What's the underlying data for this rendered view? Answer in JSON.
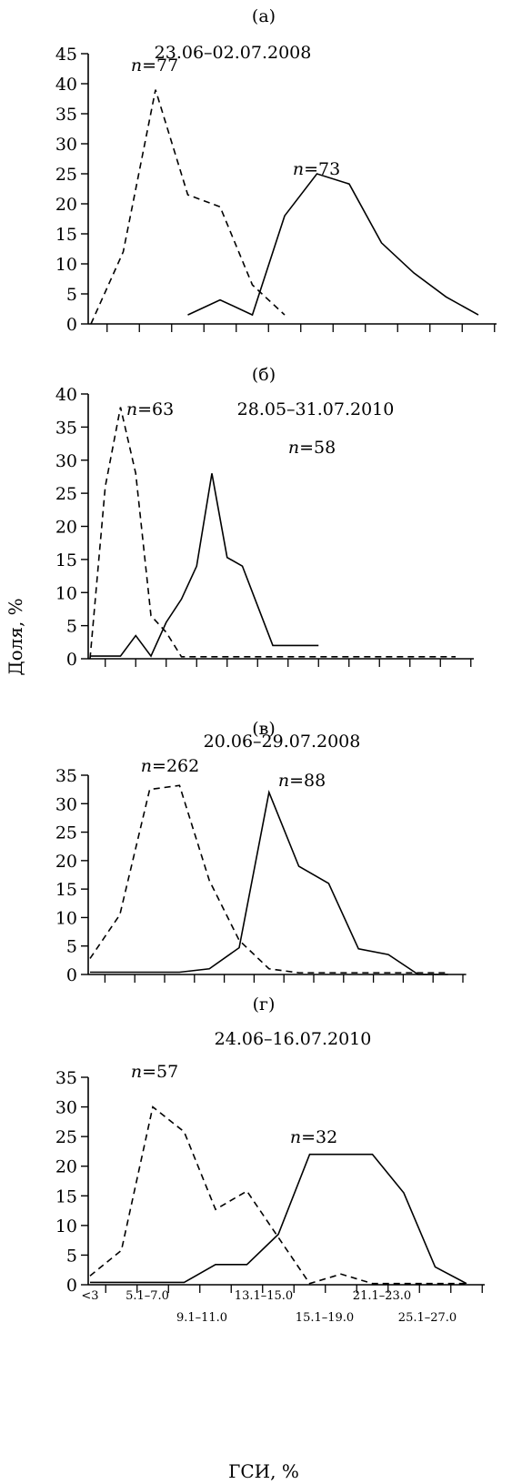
{
  "figure": {
    "ylabel": "Доля, %",
    "xlabel": "ГСИ, %",
    "x_tick_labels": [
      "<3",
      "5.1–7.0",
      "9.1–11.0",
      "13.1–15.0",
      "15.1–19.0",
      "21.1–23.0",
      "25.1–27.0"
    ]
  },
  "chart_data": [
    {
      "type": "line",
      "panel_label": "(а)",
      "title": "23.06–02.07.2008",
      "ylim": [
        0,
        45
      ],
      "yticks": [
        0,
        5,
        10,
        15,
        20,
        25,
        30,
        35,
        40,
        45
      ],
      "x_categories": 13,
      "series": [
        {
          "label": "n=77",
          "style": "dashed",
          "x": [
            0,
            1,
            2,
            3,
            4,
            5,
            6
          ],
          "values": [
            0,
            12,
            39,
            21.5,
            19.5,
            6.5,
            1.5
          ]
        },
        {
          "label": "n=73",
          "style": "solid",
          "x": [
            3,
            4,
            5,
            6,
            7,
            8,
            9,
            10,
            11,
            12
          ],
          "values": [
            1.5,
            4,
            1.5,
            18,
            25,
            23.3,
            13.5,
            8.5,
            4.5,
            1.5
          ]
        }
      ]
    },
    {
      "type": "line",
      "panel_label": "(б)",
      "title": "28.05–31.07.2010",
      "ylim": [
        0,
        40
      ],
      "yticks": [
        0,
        5,
        10,
        15,
        20,
        25,
        30,
        35,
        40
      ],
      "x_categories": 13,
      "series": [
        {
          "label": "n=63",
          "style": "dashed",
          "x": [
            0,
            0.5,
            1,
            1.5,
            2,
            2.5,
            3,
            3.5,
            4,
            4.5,
            5,
            6,
            7,
            8,
            9,
            10,
            11,
            12
          ],
          "values": [
            0,
            26,
            38,
            28,
            6.5,
            4,
            0.3,
            0.3,
            0.3,
            0.3,
            0.3,
            0.3,
            0.3,
            0.3,
            0.3,
            0.3,
            0.3,
            0.3
          ]
        },
        {
          "label": "n=58",
          "style": "solid",
          "x": [
            0,
            1,
            1.5,
            2,
            2.5,
            3,
            3.5,
            4,
            4.5,
            5,
            5.5,
            6,
            6.5,
            7,
            7.5
          ],
          "values": [
            0.4,
            0.4,
            3.5,
            0.4,
            5.5,
            9,
            14,
            28,
            15.3,
            14,
            8,
            2,
            2,
            2,
            2
          ]
        }
      ]
    },
    {
      "type": "line",
      "panel_label": "(в)",
      "title": "20.06–29.07.2008",
      "ylim": [
        0,
        35
      ],
      "yticks": [
        0,
        5,
        10,
        15,
        20,
        25,
        30,
        35
      ],
      "x_categories": 13,
      "series": [
        {
          "label": "n=262",
          "style": "dashed",
          "x": [
            0,
            1,
            2,
            3,
            4,
            5,
            6,
            7,
            8,
            9,
            10,
            11,
            12
          ],
          "values": [
            2.8,
            10.5,
            32.5,
            33.2,
            16.5,
            6,
            1,
            0.3,
            0.3,
            0.3,
            0.3,
            0.3,
            0.3
          ]
        },
        {
          "label": "n=88",
          "style": "solid",
          "x": [
            0,
            1,
            2,
            3,
            4,
            5,
            6,
            7,
            8,
            9,
            10,
            11,
            12
          ],
          "values": [
            0.4,
            0.4,
            0.4,
            0.4,
            1,
            4.7,
            32,
            19,
            16,
            4.5,
            3.5,
            0,
            0
          ]
        }
      ]
    },
    {
      "type": "line",
      "panel_label": "(г)",
      "title": "24.06–16.07.2010",
      "ylim": [
        0,
        35
      ],
      "yticks": [
        0,
        5,
        10,
        15,
        20,
        25,
        30,
        35
      ],
      "x_categories": 13,
      "series": [
        {
          "label": "n=57",
          "style": "dashed",
          "x": [
            0,
            1,
            2,
            3,
            4,
            5,
            6,
            7,
            8,
            9,
            10,
            11,
            12
          ],
          "values": [
            1.5,
            5.8,
            30,
            25.8,
            12.7,
            15.8,
            8,
            0.2,
            1.8,
            0.2,
            0.2,
            0.2,
            0.2
          ]
        },
        {
          "label": "n=32",
          "style": "solid",
          "x": [
            0,
            1,
            2,
            3,
            4,
            5,
            6,
            7,
            8,
            9,
            10,
            11,
            12
          ],
          "values": [
            0.4,
            0.4,
            0.4,
            0.4,
            3.4,
            3.4,
            8.5,
            22,
            22,
            22,
            15.5,
            3,
            0.2
          ]
        }
      ]
    }
  ]
}
